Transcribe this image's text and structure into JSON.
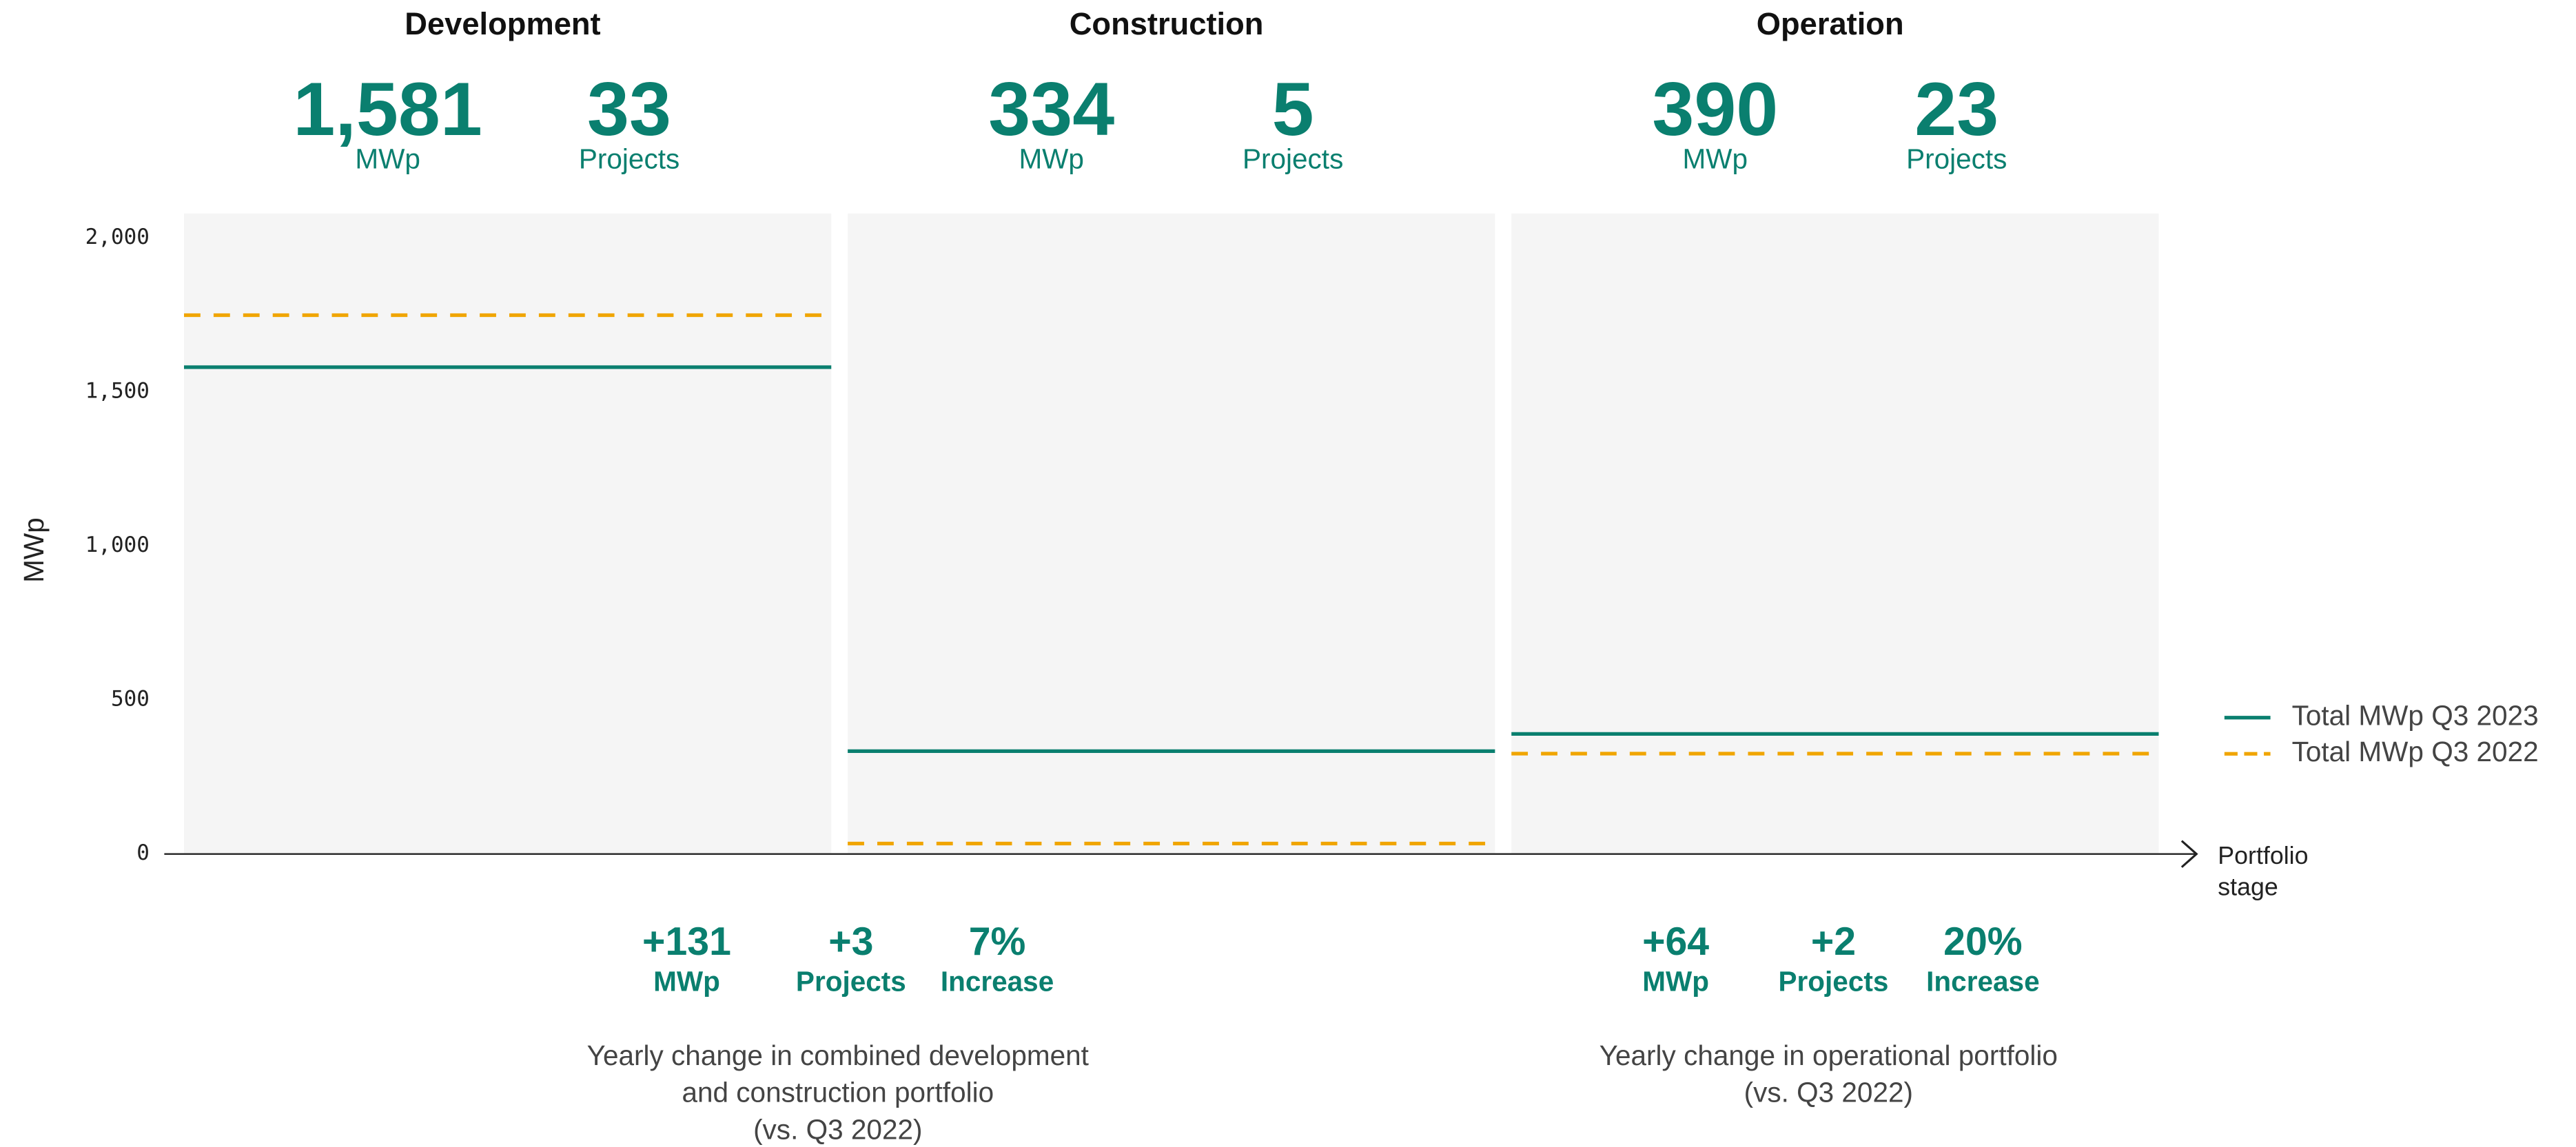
{
  "chart_data": {
    "type": "level",
    "categories": [
      "Development",
      "Construction",
      "Operation"
    ],
    "series": [
      {
        "name": "Total MWp Q3 2023",
        "color": "#0a7f6f",
        "dashed": false,
        "values": [
          1581,
          334,
          390
        ],
        "value_labels": [
          "1,581",
          "334",
          "390"
        ]
      },
      {
        "name": "Total MWp Q3 2022",
        "color": "#f0a500",
        "dashed": true,
        "values": [
          1750,
          34,
          326
        ]
      }
    ],
    "ylabel": "MWp",
    "xlabel": "Portfolio stage",
    "ylim": [
      0,
      2080
    ],
    "yticks": [
      0,
      500,
      {
        "value": 1000,
        "label": "1,000"
      },
      {
        "value": 1500,
        "label": "1,500"
      },
      {
        "value": 2000,
        "label": "2,000"
      }
    ],
    "legend": "right",
    "project_counts": [
      33,
      5,
      23
    ],
    "units": {
      "mwp": "MWp",
      "projects": "Projects",
      "increase": "Increase"
    }
  },
  "changes": [
    {
      "mwp": "+131",
      "projects": "+3",
      "pct": "7%",
      "caption": [
        "Yearly change in combined development",
        "and construction portfolio",
        "(vs. Q3 2022)"
      ]
    },
    {
      "mwp": "+64",
      "projects": "+2",
      "pct": "20%",
      "caption": [
        "Yearly change in operational portfolio",
        "(vs. Q3 2022)"
      ]
    }
  ]
}
